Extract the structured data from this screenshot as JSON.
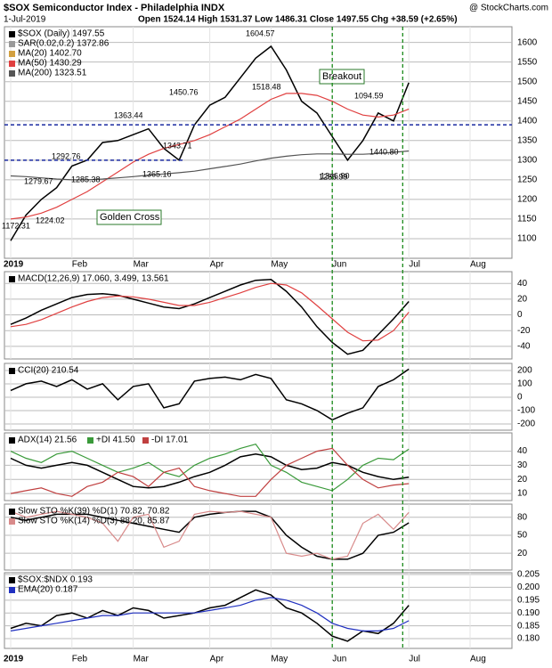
{
  "chart_data": [
    {
      "type": "line",
      "title": "$SOX Semiconductor Index - Philadelphia INDX",
      "source": "@ StockCharts.com",
      "date": "1-Jul-2019",
      "quote": "Open 1524.14 High 1531.37 Low 1486.31 Close 1497.55 Chg +38.59 (+2.65%)",
      "categories": [
        "2019",
        null,
        null,
        null,
        "Feb",
        null,
        null,
        null,
        "Mar",
        null,
        null,
        null,
        null,
        "Apr",
        null,
        null,
        null,
        "May",
        null,
        null,
        null,
        "Jun",
        null,
        null,
        null,
        null,
        "Jul",
        null,
        null,
        null,
        "Aug",
        null,
        null,
        null,
        null
      ],
      "series": [
        {
          "name": "$SOX (Daily) 1497.55",
          "color": "#000000",
          "values": [
            1095,
            1160,
            1200,
            1230,
            1285,
            1300,
            1345,
            1350,
            1365,
            1380,
            1330,
            1300,
            1390,
            1440,
            1460,
            1510,
            1560,
            1590,
            1530,
            1450,
            1420,
            1360,
            1300,
            1350,
            1420,
            1400,
            1497.55,
            null,
            null,
            null,
            null,
            null,
            null,
            null,
            null
          ]
        },
        {
          "name": "SAR(0.02,0.2) 1372.86",
          "color": "#999999",
          "values": [
            null,
            null,
            null,
            null,
            null,
            null,
            null,
            null,
            null,
            null,
            null,
            null,
            null,
            null,
            null,
            null,
            null,
            null,
            null,
            null,
            null,
            null,
            null,
            null,
            null,
            null,
            null,
            null,
            null,
            null,
            null,
            null,
            null,
            null,
            null
          ]
        },
        {
          "name": "MA(20) 1402.70",
          "color": "#d2a040",
          "values": [
            null,
            null,
            null,
            null,
            null,
            null,
            null,
            null,
            null,
            null,
            null,
            null,
            null,
            null,
            null,
            null,
            null,
            null,
            null,
            null,
            null,
            null,
            null,
            null,
            null,
            null,
            null,
            null,
            null,
            null,
            null,
            null,
            null,
            null,
            null
          ]
        },
        {
          "name": "MA(50) 1430.29",
          "color": "#e04040",
          "values": [
            1150,
            1155,
            1165,
            1180,
            1200,
            1220,
            1245,
            1270,
            1295,
            1315,
            1330,
            1340,
            1350,
            1365,
            1385,
            1405,
            1430,
            1455,
            1470,
            1470,
            1465,
            1450,
            1430,
            1415,
            1410,
            1415,
            1430.29,
            null,
            null,
            null,
            null,
            null,
            null,
            null,
            null
          ]
        },
        {
          "name": "MA(200) 1323.51",
          "color": "#555555",
          "values": [
            1260,
            1258,
            1255,
            1252,
            1250,
            1250,
            1252,
            1255,
            1258,
            1262,
            1265,
            1268,
            1272,
            1278,
            1284,
            1290,
            1298,
            1305,
            1310,
            1314,
            1316,
            1316,
            1315,
            1315,
            1317,
            1320,
            1323.51,
            null,
            null,
            null,
            null,
            null,
            null,
            null,
            null
          ]
        }
      ],
      "levels": [
        1390,
        1300
      ],
      "annotations": [
        "1604.57",
        "1518.48",
        "1450.76",
        "1363.44",
        "1343.71",
        "1365.16",
        "1292.76",
        "1285.38",
        "1279.67",
        "1224.02",
        "1172.31",
        "1094.59",
        "1440.80",
        "1346.90",
        "1286.99",
        "Breakout",
        "Golden Cross"
      ],
      "ylim": [
        1050,
        1640
      ],
      "yticks": [
        1100,
        1150,
        1200,
        1250,
        1300,
        1350,
        1400,
        1450,
        1500,
        1550,
        1600
      ],
      "grid": true
    },
    {
      "type": "line",
      "series": [
        {
          "name": "MACD(12,26,9) 17.060, 3.499, 13.561",
          "color": "#000000",
          "values": [
            -12,
            -4,
            6,
            14,
            22,
            26,
            27,
            25,
            20,
            15,
            10,
            8,
            14,
            22,
            30,
            38,
            44,
            45,
            30,
            10,
            -15,
            -35,
            -50,
            -45,
            -25,
            -5,
            17.06,
            null,
            null,
            null,
            null,
            null,
            null,
            null,
            null
          ]
        },
        {
          "name": "",
          "color": "#e04040",
          "values": [
            -15,
            -12,
            -6,
            2,
            10,
            17,
            22,
            24,
            23,
            20,
            16,
            12,
            12,
            16,
            22,
            28,
            35,
            40,
            38,
            28,
            12,
            -5,
            -22,
            -33,
            -32,
            -20,
            3.499,
            null,
            null,
            null,
            null,
            null,
            null,
            null,
            null
          ]
        }
      ],
      "ylim": [
        -56,
        55
      ],
      "yticks": [
        -40,
        -20,
        0,
        20,
        40
      ],
      "grid": true
    },
    {
      "type": "line",
      "series": [
        {
          "name": "CCI(20) 210.54",
          "color": "#000000",
          "values": [
            50,
            100,
            120,
            80,
            130,
            60,
            100,
            -20,
            80,
            100,
            -80,
            -50,
            120,
            140,
            150,
            130,
            170,
            140,
            -20,
            -50,
            -100,
            -170,
            -120,
            -80,
            80,
            130,
            210.54,
            null,
            null,
            null,
            null,
            null,
            null,
            null,
            null
          ]
        }
      ],
      "ylim": [
        -247,
        253
      ],
      "yticks": [
        -200,
        -100,
        0,
        100,
        200
      ],
      "grid": true
    },
    {
      "type": "line",
      "series": [
        {
          "name": "ADX(14) 21.56",
          "color": "#000000",
          "values": [
            35,
            30,
            28,
            30,
            32,
            30,
            25,
            20,
            15,
            14,
            15,
            18,
            22,
            25,
            30,
            36,
            38,
            36,
            30,
            27,
            28,
            32,
            30,
            25,
            22,
            20,
            21.56,
            null,
            null,
            null,
            null,
            null,
            null,
            null,
            null
          ]
        },
        {
          "name": "+DI 41.50",
          "color": "#3a9a3a",
          "values": [
            40,
            35,
            32,
            38,
            40,
            35,
            30,
            25,
            28,
            32,
            25,
            22,
            30,
            35,
            38,
            42,
            45,
            30,
            25,
            18,
            15,
            12,
            20,
            30,
            35,
            34,
            41.5,
            null,
            null,
            null,
            null,
            null,
            null,
            null,
            null
          ]
        },
        {
          "name": "-DI 17.01",
          "color": "#c04040",
          "values": [
            10,
            12,
            14,
            10,
            8,
            15,
            18,
            25,
            22,
            15,
            25,
            28,
            15,
            12,
            10,
            8,
            8,
            20,
            30,
            35,
            40,
            42,
            30,
            20,
            14,
            16,
            17.01,
            null,
            null,
            null,
            null,
            null,
            null,
            null,
            null
          ]
        }
      ],
      "ylim": [
        5,
        53
      ],
      "yticks": [
        10,
        20,
        30,
        40
      ],
      "grid": true
    },
    {
      "type": "line",
      "series": [
        {
          "name": "Slow STO %K(39) %D(1) 70.82, 70.82",
          "color": "#000000",
          "values": [
            80,
            75,
            80,
            85,
            85,
            85,
            80,
            75,
            70,
            65,
            60,
            55,
            80,
            85,
            88,
            90,
            90,
            80,
            50,
            30,
            15,
            10,
            10,
            20,
            50,
            55,
            70.82,
            null,
            null,
            null,
            null,
            null,
            null,
            null,
            null
          ]
        },
        {
          "name": "Slow STO %K(14) %D(3) 88.20, 85.87",
          "color": "#d88a8a",
          "values": [
            90,
            80,
            85,
            90,
            85,
            80,
            70,
            40,
            80,
            85,
            30,
            40,
            85,
            90,
            88,
            90,
            85,
            80,
            20,
            15,
            20,
            10,
            15,
            70,
            85,
            60,
            88.2,
            null,
            null,
            null,
            null,
            null,
            null,
            null,
            null
          ]
        }
      ],
      "ylim": [
        -8,
        102
      ],
      "yticks": [
        20,
        50,
        80
      ],
      "grid": true
    },
    {
      "type": "line",
      "series": [
        {
          "name": "$SOX:$NDX 0.193",
          "color": "#000000",
          "values": [
            0.184,
            0.186,
            0.185,
            0.189,
            0.19,
            0.188,
            0.191,
            0.189,
            0.192,
            0.191,
            0.188,
            0.189,
            0.19,
            0.192,
            0.193,
            0.196,
            0.199,
            0.197,
            0.192,
            0.19,
            0.186,
            0.181,
            0.179,
            0.183,
            0.182,
            0.186,
            0.193,
            null,
            null,
            null,
            null,
            null,
            null,
            null,
            null
          ]
        },
        {
          "name": "EMA(20) 0.187",
          "color": "#2030c0",
          "values": [
            0.183,
            0.184,
            0.185,
            0.186,
            0.187,
            0.188,
            0.189,
            0.189,
            0.19,
            0.19,
            0.19,
            0.19,
            0.19,
            0.191,
            0.192,
            0.193,
            0.195,
            0.196,
            0.195,
            0.193,
            0.19,
            0.186,
            0.184,
            0.183,
            0.183,
            0.184,
            0.187,
            null,
            null,
            null,
            null,
            null,
            null,
            null,
            null
          ]
        }
      ],
      "ylim": [
        0.1762,
        0.2057
      ],
      "yticks": [
        {
          "value": 0.18,
          "label": "0.180"
        },
        0.185,
        {
          "value": 0.19,
          "label": "0.190"
        },
        0.195,
        {
          "value": 0.2,
          "label": "0.200"
        },
        0.205
      ],
      "grid": true
    }
  ]
}
